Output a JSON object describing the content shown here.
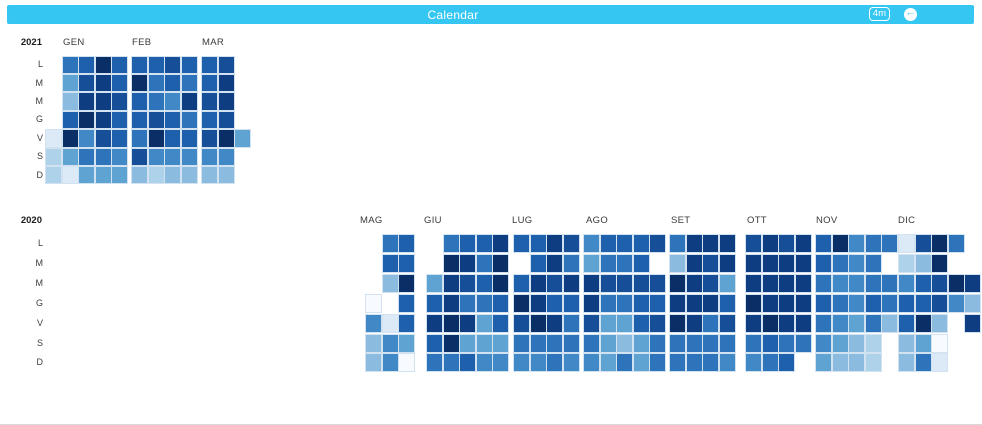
{
  "header": {
    "title": "Calendar",
    "range_badge": "4m",
    "prev_glyph": "←",
    "bar_color": "#35c7f2"
  },
  "chart_data": {
    "type": "heatmap",
    "subtype": "calendar-heatmap",
    "description": "Daily activity calendar heatmap. Color intensity encodes daily value on an 11-step blue scale; '.' means no data for that day.",
    "legend": "levels 0 (lightest / near zero) to 10 (darkest navy / highest); '.' = absent",
    "palette": [
      "#f7fbff",
      "#dce9f6",
      "#aed2ea",
      "#8bbcdf",
      "#5ea3d2",
      "#4189c6",
      "#2e74ba",
      "#1f60ac",
      "#164f98",
      "#0e3d82",
      "#092f66"
    ],
    "day_labels": [
      "L",
      "M",
      "M",
      "G",
      "V",
      "S",
      "D"
    ],
    "years": [
      {
        "year": "2021",
        "months": [
          {
            "label": "GEN",
            "cols": 5,
            "rows": [
              ".67a7",
              ".4897",
              ".3998",
              ".7a97",
              "1a587",
              "24665",
              "21444"
            ]
          },
          {
            "label": "FEB",
            "cols": 4,
            "rows": [
              "7787",
              "a676",
              "7659",
              "7876",
              "6a77",
              "8555",
              "3233"
            ]
          },
          {
            "label": "MAR",
            "cols": 3,
            "rows": [
              "78.",
              "79.",
              "89.",
              "78.",
              "8a4",
              "55.",
              "33."
            ]
          }
        ]
      },
      {
        "year": "2020",
        "months": [
          {
            "label": "MAG",
            "cols": 3,
            "rows": [
              ".67",
              ".77",
              ".3a",
              "0.7",
              "517",
              "354",
              "350"
            ]
          },
          {
            "label": "GIU",
            "cols": 5,
            "rows": [
              ".6779",
              ".a96a",
              "4987a",
              "79667",
              "9a947",
              "7a444",
              "66755"
            ]
          },
          {
            "label": "LUG",
            "cols": 4,
            "rows": [
              "7798",
              ".796",
              "7989",
              "a977",
              "8a96",
              "6666",
              "5565"
            ]
          },
          {
            "label": "AGO",
            "cols": 5,
            "rows": [
              "57778",
              "4667.",
              "98888",
              "96677",
              "84478",
              "64346",
              "54646"
            ]
          },
          {
            "label": "SET",
            "cols": 4,
            "rows": [
              "6999",
              "3989",
              "a984",
              "9997",
              "a968",
              "6666",
              "6665"
            ]
          },
          {
            "label": "OTT",
            "cols": 4,
            "rows": [
              "8989",
              "9999",
              "9999",
              "a999",
              "9a99",
              "6766",
              "567."
            ]
          },
          {
            "label": "NOV",
            "cols": 5,
            "rows": [
              "7a566",
              "7656.",
              "65566",
              "76576",
              "65463",
              "5432.",
              "4332."
            ]
          },
          {
            "label": "DIC",
            "cols": 5,
            "rows": [
              "18a6.",
              "23a..",
              "578a9",
              "77853",
              "7a3.9",
              "340..",
              "361.."
            ]
          }
        ]
      }
    ]
  }
}
